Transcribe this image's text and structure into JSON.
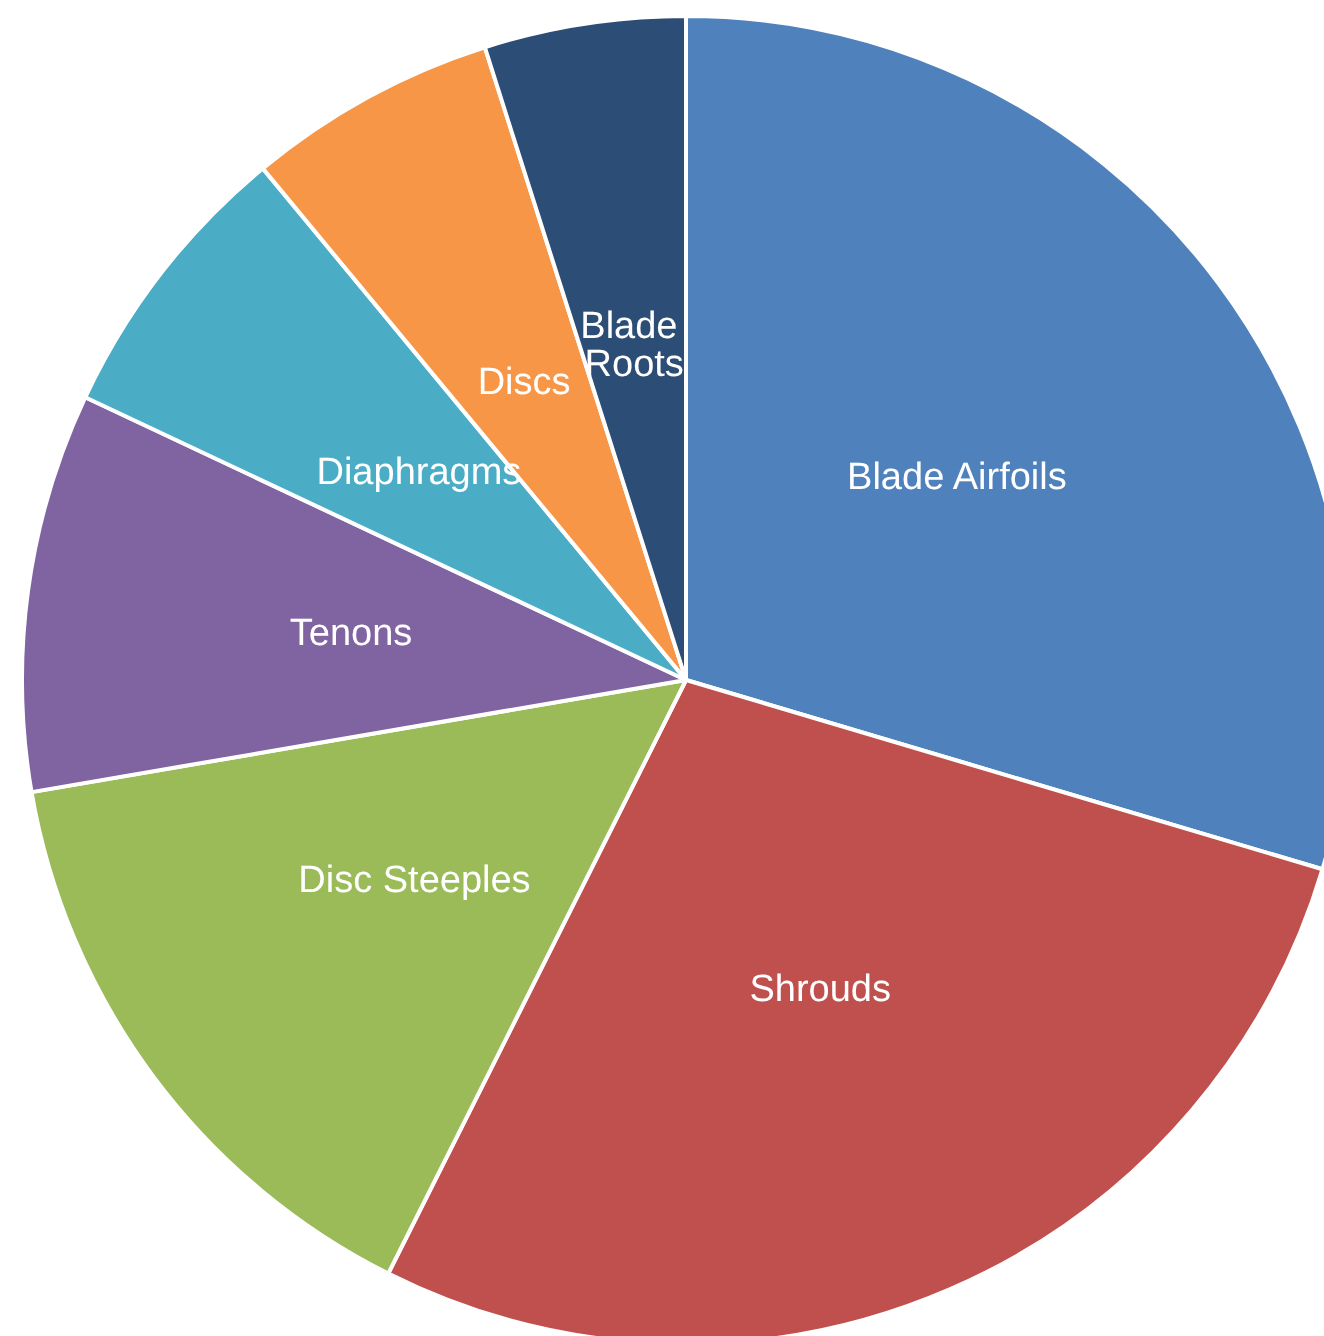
{
  "chart_data": {
    "type": "pie",
    "categories": [
      "Blade Airfoils",
      "Shrouds",
      "Disc Steeples",
      "Tenons",
      "Diaphragms",
      "Discs",
      "Blade Roots"
    ],
    "values": [
      29.6,
      27.8,
      14.9,
      9.7,
      7.0,
      6.1,
      4.9
    ],
    "colors": [
      "#4f81bd",
      "#c0504d",
      "#9bbb59",
      "#8064a2",
      "#4bacc6",
      "#f79646",
      "#2c4d75"
    ],
    "legend": false
  }
}
